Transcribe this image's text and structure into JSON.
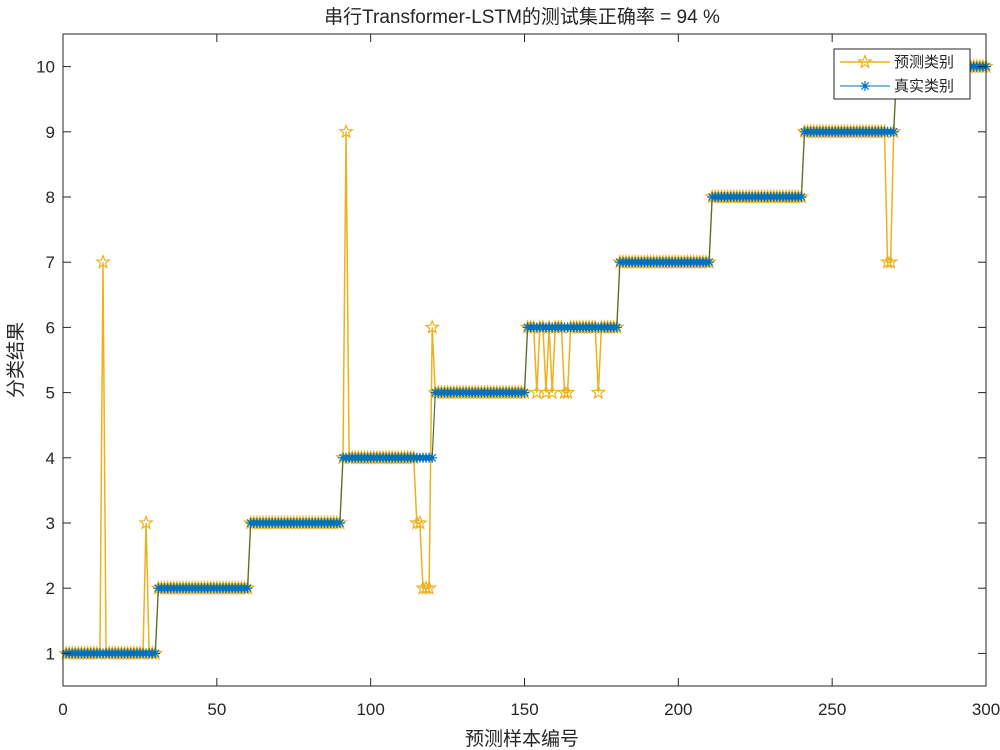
{
  "chart_data": {
    "type": "line",
    "title": "串行Transformer-LSTM的测试集正确率 = 94 %",
    "xlabel": "预测样本编号",
    "ylabel": "分类结果",
    "xlim": [
      0,
      300
    ],
    "ylim": [
      0.5,
      10.5
    ],
    "xticks": [
      "0",
      "50",
      "100",
      "150",
      "200",
      "250",
      "300"
    ],
    "yticks": [
      "1",
      "2",
      "3",
      "4",
      "5",
      "6",
      "7",
      "8",
      "9",
      "10"
    ],
    "grid": false,
    "legend_position": "top-right",
    "x_note": "sample index 1..300, 30 samples per class",
    "series": [
      {
        "name": "预测类别",
        "marker": "star",
        "color": "#EDB120",
        "values": [
          1,
          1,
          1,
          1,
          1,
          1,
          1,
          1,
          1,
          1,
          1,
          1,
          7,
          1,
          1,
          1,
          1,
          1,
          1,
          1,
          1,
          1,
          1,
          1,
          1,
          1,
          3,
          1,
          1,
          1,
          2,
          2,
          2,
          2,
          2,
          2,
          2,
          2,
          2,
          2,
          2,
          2,
          2,
          2,
          2,
          2,
          2,
          2,
          2,
          2,
          2,
          2,
          2,
          2,
          2,
          2,
          2,
          2,
          2,
          2,
          3,
          3,
          3,
          3,
          3,
          3,
          3,
          3,
          3,
          3,
          3,
          3,
          3,
          3,
          3,
          3,
          3,
          3,
          3,
          3,
          3,
          3,
          3,
          3,
          3,
          3,
          3,
          3,
          3,
          3,
          4,
          9,
          4,
          4,
          4,
          4,
          4,
          4,
          4,
          4,
          4,
          4,
          4,
          4,
          4,
          4,
          4,
          4,
          4,
          4,
          4,
          4,
          4,
          4,
          3,
          3,
          2,
          2,
          2,
          6,
          5,
          5,
          5,
          5,
          5,
          5,
          5,
          5,
          5,
          5,
          5,
          5,
          5,
          5,
          5,
          5,
          5,
          5,
          5,
          5,
          5,
          5,
          5,
          5,
          5,
          5,
          5,
          5,
          5,
          5,
          6,
          6,
          6,
          5,
          6,
          6,
          5,
          6,
          5,
          6,
          6,
          6,
          5,
          5,
          6,
          6,
          6,
          6,
          6,
          6,
          6,
          6,
          6,
          5,
          6,
          6,
          6,
          6,
          6,
          6,
          7,
          7,
          7,
          7,
          7,
          7,
          7,
          7,
          7,
          7,
          7,
          7,
          7,
          7,
          7,
          7,
          7,
          7,
          7,
          7,
          7,
          7,
          7,
          7,
          7,
          7,
          7,
          7,
          7,
          7,
          8,
          8,
          8,
          8,
          8,
          8,
          8,
          8,
          8,
          8,
          8,
          8,
          8,
          8,
          8,
          8,
          8,
          8,
          8,
          8,
          8,
          8,
          8,
          8,
          8,
          8,
          8,
          8,
          8,
          8,
          9,
          9,
          9,
          9,
          9,
          9,
          9,
          9,
          9,
          9,
          9,
          9,
          9,
          9,
          9,
          9,
          9,
          9,
          9,
          9,
          9,
          9,
          9,
          9,
          9,
          9,
          9,
          7,
          7,
          9,
          10,
          10,
          10,
          10,
          10,
          10,
          10,
          10,
          10,
          10,
          10,
          10,
          10,
          10,
          10,
          10,
          10,
          10,
          10,
          10,
          10,
          10,
          10,
          10,
          10,
          10,
          10,
          10,
          10,
          10
        ]
      },
      {
        "name": "真实类别",
        "marker": "asterisk",
        "color": "#0072BD",
        "values": [
          1,
          1,
          1,
          1,
          1,
          1,
          1,
          1,
          1,
          1,
          1,
          1,
          1,
          1,
          1,
          1,
          1,
          1,
          1,
          1,
          1,
          1,
          1,
          1,
          1,
          1,
          1,
          1,
          1,
          1,
          2,
          2,
          2,
          2,
          2,
          2,
          2,
          2,
          2,
          2,
          2,
          2,
          2,
          2,
          2,
          2,
          2,
          2,
          2,
          2,
          2,
          2,
          2,
          2,
          2,
          2,
          2,
          2,
          2,
          2,
          3,
          3,
          3,
          3,
          3,
          3,
          3,
          3,
          3,
          3,
          3,
          3,
          3,
          3,
          3,
          3,
          3,
          3,
          3,
          3,
          3,
          3,
          3,
          3,
          3,
          3,
          3,
          3,
          3,
          3,
          4,
          4,
          4,
          4,
          4,
          4,
          4,
          4,
          4,
          4,
          4,
          4,
          4,
          4,
          4,
          4,
          4,
          4,
          4,
          4,
          4,
          4,
          4,
          4,
          4,
          4,
          4,
          4,
          4,
          4,
          5,
          5,
          5,
          5,
          5,
          5,
          5,
          5,
          5,
          5,
          5,
          5,
          5,
          5,
          5,
          5,
          5,
          5,
          5,
          5,
          5,
          5,
          5,
          5,
          5,
          5,
          5,
          5,
          5,
          5,
          6,
          6,
          6,
          6,
          6,
          6,
          6,
          6,
          6,
          6,
          6,
          6,
          6,
          6,
          6,
          6,
          6,
          6,
          6,
          6,
          6,
          6,
          6,
          6,
          6,
          6,
          6,
          6,
          6,
          6,
          7,
          7,
          7,
          7,
          7,
          7,
          7,
          7,
          7,
          7,
          7,
          7,
          7,
          7,
          7,
          7,
          7,
          7,
          7,
          7,
          7,
          7,
          7,
          7,
          7,
          7,
          7,
          7,
          7,
          7,
          8,
          8,
          8,
          8,
          8,
          8,
          8,
          8,
          8,
          8,
          8,
          8,
          8,
          8,
          8,
          8,
          8,
          8,
          8,
          8,
          8,
          8,
          8,
          8,
          8,
          8,
          8,
          8,
          8,
          8,
          9,
          9,
          9,
          9,
          9,
          9,
          9,
          9,
          9,
          9,
          9,
          9,
          9,
          9,
          9,
          9,
          9,
          9,
          9,
          9,
          9,
          9,
          9,
          9,
          9,
          9,
          9,
          9,
          9,
          9,
          10,
          10,
          10,
          10,
          10,
          10,
          10,
          10,
          10,
          10,
          10,
          10,
          10,
          10,
          10,
          10,
          10,
          10,
          10,
          10,
          10,
          10,
          10,
          10,
          10,
          10,
          10,
          10,
          10,
          10
        ],
        "line_color": "#4D6E45"
      }
    ]
  }
}
